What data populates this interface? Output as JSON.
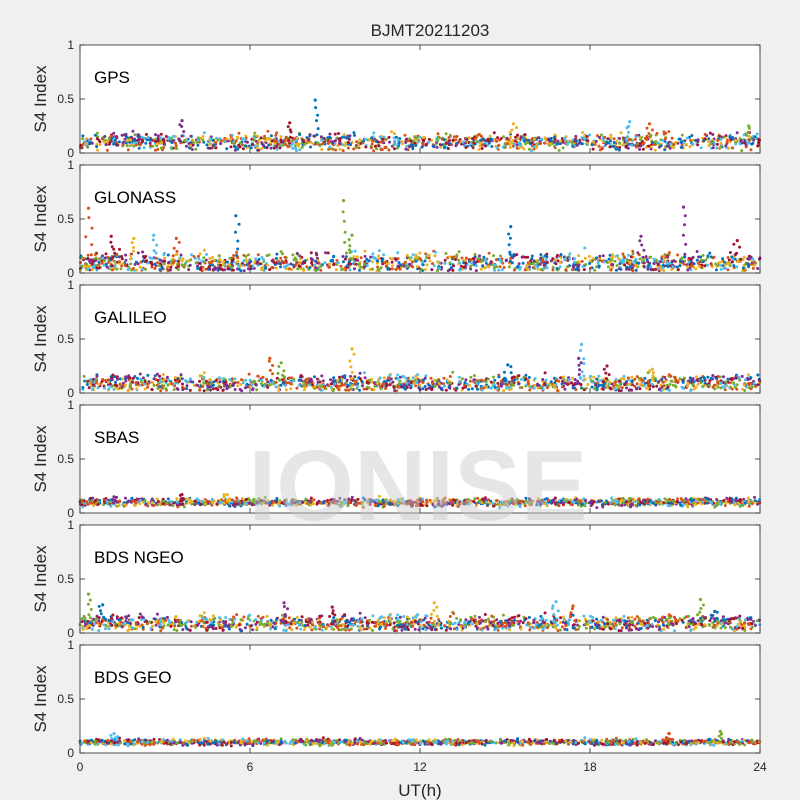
{
  "chart_data": {
    "type": "scatter",
    "title": "BJMT20211203",
    "xlabel": "UT(h)",
    "xlim": [
      0,
      24
    ],
    "x_ticks": [
      "0",
      "6",
      "12",
      "18",
      "24"
    ],
    "ylabel": "S4 Index",
    "ylim": [
      0,
      1
    ],
    "y_ticks": [
      "0",
      "0.5",
      "1"
    ],
    "watermark": "IONISE",
    "colors": [
      "#0072bd",
      "#d95319",
      "#edb120",
      "#7e2f8e",
      "#77ac30",
      "#4dbeee",
      "#a2142f"
    ],
    "panels": [
      {
        "name": "GPS",
        "baseline": 0.1,
        "spread": 0.04,
        "peaks": [
          [
            8.3,
            0.49
          ],
          [
            3.6,
            0.3
          ],
          [
            7.4,
            0.28
          ],
          [
            15.3,
            0.27
          ],
          [
            19.4,
            0.29
          ],
          [
            20.1,
            0.27
          ],
          [
            23.6,
            0.25
          ]
        ]
      },
      {
        "name": "GLONASS",
        "baseline": 0.09,
        "spread": 0.05,
        "peaks": [
          [
            0.3,
            0.6
          ],
          [
            9.3,
            0.67
          ],
          [
            5.5,
            0.53
          ],
          [
            21.3,
            0.61
          ],
          [
            1.1,
            0.34
          ],
          [
            1.9,
            0.32
          ],
          [
            2.6,
            0.35
          ],
          [
            3.4,
            0.32
          ],
          [
            9.6,
            0.35
          ],
          [
            15.2,
            0.43
          ],
          [
            19.8,
            0.34
          ],
          [
            23.2,
            0.3
          ]
        ]
      },
      {
        "name": "GALILEO",
        "baseline": 0.09,
        "spread": 0.04,
        "peaks": [
          [
            9.6,
            0.41
          ],
          [
            17.7,
            0.45
          ],
          [
            6.7,
            0.32
          ],
          [
            7.1,
            0.28
          ],
          [
            15.1,
            0.26
          ],
          [
            17.6,
            0.32
          ],
          [
            18.6,
            0.25
          ],
          [
            20.2,
            0.22
          ]
        ]
      },
      {
        "name": "SBAS",
        "baseline": 0.1,
        "spread": 0.02,
        "peaks": [
          [
            1.2,
            0.15
          ],
          [
            3.6,
            0.17
          ],
          [
            5.2,
            0.17
          ]
        ]
      },
      {
        "name": "BDS NGEO",
        "baseline": 0.09,
        "spread": 0.04,
        "peaks": [
          [
            0.3,
            0.36
          ],
          [
            0.8,
            0.26
          ],
          [
            7.2,
            0.28
          ],
          [
            8.9,
            0.24
          ],
          [
            12.5,
            0.28
          ],
          [
            16.8,
            0.29
          ],
          [
            17.4,
            0.25
          ],
          [
            21.9,
            0.31
          ],
          [
            22.4,
            0.2
          ]
        ]
      },
      {
        "name": "BDS GEO",
        "baseline": 0.1,
        "spread": 0.015,
        "peaks": [
          [
            1.2,
            0.18
          ],
          [
            20.8,
            0.18
          ],
          [
            22.6,
            0.2
          ]
        ]
      }
    ]
  }
}
